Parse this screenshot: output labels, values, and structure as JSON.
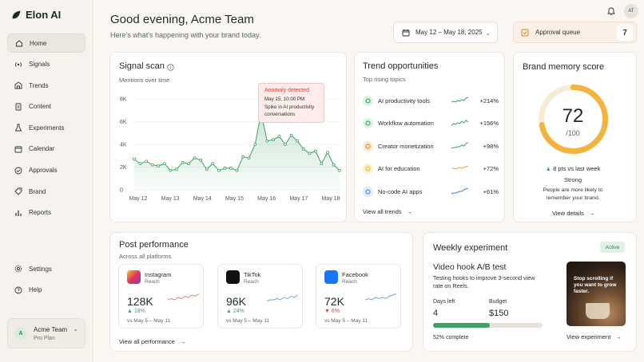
{
  "app": {
    "name": "Elon AI"
  },
  "sidebar": {
    "items": [
      {
        "label": "Home",
        "icon": "home-icon"
      },
      {
        "label": "Signals",
        "icon": "signals-icon"
      },
      {
        "label": "Trends",
        "icon": "trends-icon"
      },
      {
        "label": "Content",
        "icon": "content-icon"
      },
      {
        "label": "Experiments",
        "icon": "flask-icon"
      },
      {
        "label": "Calendar",
        "icon": "calendar-icon"
      },
      {
        "label": "Approvals",
        "icon": "check-circle-icon"
      },
      {
        "label": "Brand",
        "icon": "tag-icon"
      },
      {
        "label": "Reports",
        "icon": "bar-chart-icon"
      }
    ],
    "bottom_items": [
      {
        "label": "Settings",
        "icon": "gear-icon"
      },
      {
        "label": "Help",
        "icon": "help-icon"
      }
    ],
    "user": {
      "initial": "A",
      "name": "Acme Team",
      "plan": "Pro Plan"
    }
  },
  "header": {
    "greeting": "Good evening, Acme Team",
    "subtitle": "Here's what's happening with your brand today.",
    "date_range": "May 12 – May 18, 2025",
    "approval_label": "Approval queue",
    "approval_count": "7",
    "user_initials": "AT"
  },
  "signal_scan": {
    "title": "Signal scan",
    "subtitle": "Mentions over time",
    "anomaly": {
      "title": "Anomaly detected",
      "time": "May 15, 10:00 PM",
      "text": "Spike in AI productivity conversations"
    }
  },
  "chart_data": {
    "type": "area",
    "title": "Signal scan",
    "subtitle": "Mentions over time",
    "categories": [
      "May 12",
      "May 13",
      "May 14",
      "May 15",
      "May 16",
      "May 17",
      "May 18"
    ],
    "y_ticks": [
      "0",
      "2K",
      "4K",
      "6K",
      "8K"
    ],
    "ylim": [
      0,
      8000
    ],
    "x": [
      0,
      0.33,
      0.67,
      1,
      1.33,
      1.67,
      2,
      2.33,
      2.67,
      3,
      3.33,
      3.67,
      4,
      4.33,
      4.67,
      5,
      5.33,
      5.67,
      6,
      6.33,
      6.67,
      7,
      7.33,
      7.67,
      8,
      8.33,
      8.67,
      9,
      9.33,
      9.67,
      10,
      10.33,
      10.67,
      11,
      11.33
    ],
    "values": [
      2700,
      2300,
      2500,
      2200,
      2100,
      2300,
      1700,
      1800,
      2400,
      2300,
      2800,
      2600,
      1800,
      2300,
      1700,
      1900,
      1900,
      1700,
      2900,
      2800,
      4000,
      6800,
      4300,
      4400,
      4700,
      4000,
      4800,
      4300,
      3600,
      3200,
      3400,
      2300,
      3300,
      2200,
      1700
    ],
    "grid": true,
    "series_color": "#3fa265",
    "annotation": {
      "x": 5.95,
      "label": "Anomaly detected"
    }
  },
  "trends": {
    "title": "Trend opportunities",
    "subtitle": "Top rising topics",
    "items": [
      {
        "label": "AI productivity tools",
        "pct": "+214%",
        "color": "#2f9a58",
        "bg": "#dff1e4",
        "spark_color": "#3fa265",
        "icon": "lightbulb-icon"
      },
      {
        "label": "Workflow automation",
        "pct": "+156%",
        "color": "#2f9a58",
        "bg": "#dff1e4",
        "spark_color": "#3fa265",
        "icon": "workflow-icon"
      },
      {
        "label": "Creator monetization",
        "pct": "+98%",
        "color": "#d8821b",
        "bg": "#fbe9d4",
        "spark_color": "#3fa265",
        "icon": "dollar-icon"
      },
      {
        "label": "AI for education",
        "pct": "+72%",
        "color": "#e0b123",
        "bg": "#fbf1cf",
        "spark_color": "#e0b123",
        "icon": "cap-icon"
      },
      {
        "label": "No-code AI apps",
        "pct": "+61%",
        "color": "#3d7fd6",
        "bg": "#dfeafb",
        "spark_color": "#3d7fd6",
        "icon": "globe-icon"
      }
    ],
    "link": "View all trends"
  },
  "brand_memory": {
    "title": "Brand memory score",
    "score": "72",
    "out_of": "/100",
    "score_fraction": 0.72,
    "change": "8 pts vs last week",
    "status": "Strong",
    "description": "People are more likely to remember your brand.",
    "link": "View details"
  },
  "post_performance": {
    "title": "Post performance",
    "subtitle": "Across all platforms",
    "platforms": [
      {
        "name": "Instagram",
        "metric": "Reach",
        "value": "128K",
        "change": "18%",
        "up": true,
        "range": "vs May 5 – May 11",
        "icon": "instagram-icon"
      },
      {
        "name": "TikTok",
        "metric": "Reach",
        "value": "96K",
        "change": "24%",
        "up": true,
        "range": "vs May 5 – May 11",
        "icon": "tiktok-icon"
      },
      {
        "name": "Facebook",
        "metric": "Reach",
        "value": "72K",
        "change": "6%",
        "up": false,
        "range": "vs May 5 – May 11",
        "icon": "facebook-icon"
      }
    ],
    "link": "View all performance"
  },
  "experiment": {
    "title": "Weekly experiment",
    "badge": "Active",
    "name": "Video hook A/B test",
    "description": "Testing hooks to improve 3-second view rate on Reels.",
    "days_label": "Days left",
    "days_value": "4",
    "budget_label": "Budget",
    "budget_value": "$150",
    "progress": 0.52,
    "progress_label": "52% complete",
    "image_text": "Stop scrolling if you want to grow faster.",
    "link": "View experiment"
  }
}
